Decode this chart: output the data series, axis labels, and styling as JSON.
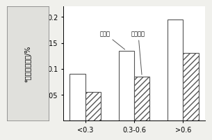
{
  "categories": [
    "<0.3",
    "0.3-0.6",
    ">0.6"
  ],
  "original_process": [
    0.09,
    0.135,
    0.195
  ],
  "trial_process": [
    0.055,
    0.085,
    0.13
  ],
  "ylabel_chars": [
    "*转",
    "帉",
    "终",
    "点",
    "残",
    "锤",
    "/%"
  ],
  "ylabel_text": "*转帉终点残锤/%",
  "ylim": [
    0,
    0.22
  ],
  "yticks": [
    0.05,
    0.1,
    0.15,
    0.2
  ],
  "legend_orig": "原工艺",
  "legend_trial": "试验工艺",
  "bar_width": 0.32,
  "figure_bg": "#f0f0ec",
  "axes_bg": "#ffffff",
  "edge_color": "#555555",
  "ylabel_box_color": "#e0e0dc"
}
